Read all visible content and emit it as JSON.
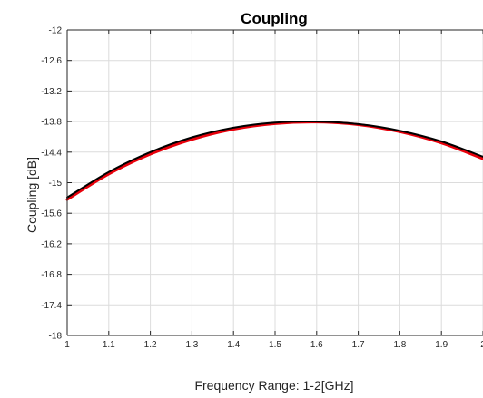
{
  "chart_data": {
    "type": "line",
    "title": "Coupling",
    "xlabel": "Frequency Range: 1-2[GHz]",
    "ylabel": "Coupling [dB]",
    "xlim": [
      1,
      2
    ],
    "ylim": [
      -18,
      -12
    ],
    "grid": true,
    "x_ticks": [
      "1",
      "1.1",
      "1.2",
      "1.3",
      "1.4",
      "1.5",
      "1.6",
      "1.7",
      "1.8",
      "1.9",
      "2"
    ],
    "y_ticks": [
      "-12",
      "-12.6",
      "-13.2",
      "-13.8",
      "-14.4",
      "-15",
      "-15.6",
      "-16.2",
      "-16.8",
      "-17.4",
      "-18"
    ],
    "x": [
      1.0,
      1.1,
      1.2,
      1.3,
      1.4,
      1.5,
      1.6,
      1.7,
      1.8,
      1.9,
      2.0
    ],
    "series": [
      {
        "color": "#e8000b",
        "values": [
          -15.33,
          -14.83,
          -14.44,
          -14.15,
          -13.95,
          -13.84,
          -13.81,
          -13.86,
          -14.0,
          -14.22,
          -14.53
        ]
      },
      {
        "color": "#000000",
        "values": [
          -15.29,
          -14.79,
          -14.4,
          -14.11,
          -13.92,
          -13.82,
          -13.8,
          -13.85,
          -13.98,
          -14.19,
          -14.49
        ]
      }
    ]
  }
}
